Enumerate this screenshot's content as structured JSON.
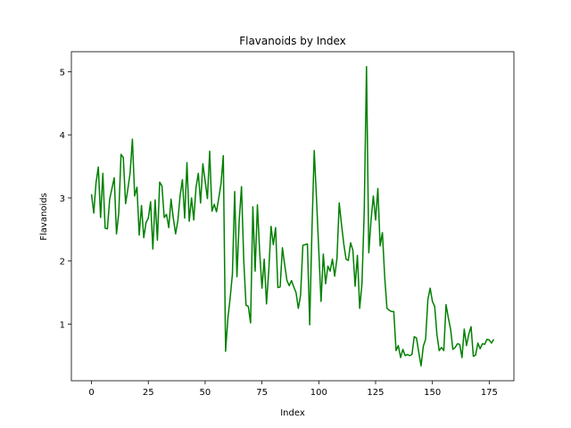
{
  "chart_data": {
    "type": "line",
    "title": "Flavanoids by Index",
    "x_label": "Index",
    "y_label": "Flavanoids",
    "x": [
      0,
      1,
      2,
      3,
      4,
      5,
      6,
      7,
      8,
      9,
      10,
      11,
      12,
      13,
      14,
      15,
      16,
      17,
      18,
      19,
      20,
      21,
      22,
      23,
      24,
      25,
      26,
      27,
      28,
      29,
      30,
      31,
      32,
      33,
      34,
      35,
      36,
      37,
      38,
      39,
      40,
      41,
      42,
      43,
      44,
      45,
      46,
      47,
      48,
      49,
      50,
      51,
      52,
      53,
      54,
      55,
      56,
      57,
      58,
      59,
      60,
      61,
      62,
      63,
      64,
      65,
      66,
      67,
      68,
      69,
      70,
      71,
      72,
      73,
      74,
      75,
      76,
      77,
      78,
      79,
      80,
      81,
      82,
      83,
      84,
      85,
      86,
      87,
      88,
      89,
      90,
      91,
      92,
      93,
      94,
      95,
      96,
      97,
      98,
      99,
      100,
      101,
      102,
      103,
      104,
      105,
      106,
      107,
      108,
      109,
      110,
      111,
      112,
      113,
      114,
      115,
      116,
      117,
      118,
      119,
      120,
      121,
      122,
      123,
      124,
      125,
      126,
      127,
      128,
      129,
      130,
      131,
      132,
      133,
      134,
      135,
      136,
      137,
      138,
      139,
      140,
      141,
      142,
      143,
      144,
      145,
      146,
      147,
      148,
      149,
      150,
      151,
      152,
      153,
      154,
      155,
      156,
      157,
      158,
      159,
      160,
      161,
      162,
      163,
      164,
      165,
      166,
      167,
      168,
      169,
      170,
      171,
      172,
      173,
      174,
      175,
      176,
      177
    ],
    "series": [
      {
        "name": "Flavanoids",
        "color": "#008000",
        "values": [
          3.06,
          2.76,
          3.24,
          3.49,
          2.69,
          3.39,
          2.52,
          2.51,
          2.98,
          3.15,
          3.32,
          2.43,
          2.76,
          3.69,
          3.64,
          2.91,
          3.14,
          3.4,
          3.93,
          3.03,
          3.17,
          2.41,
          2.88,
          2.37,
          2.61,
          2.68,
          2.94,
          2.19,
          2.97,
          2.33,
          3.25,
          3.19,
          2.69,
          2.74,
          2.53,
          2.98,
          2.68,
          2.43,
          2.64,
          3.04,
          3.29,
          2.68,
          3.56,
          2.63,
          3.0,
          2.65,
          3.17,
          3.39,
          2.92,
          3.54,
          3.27,
          2.99,
          3.74,
          2.79,
          2.9,
          2.78,
          3.0,
          3.23,
          3.67,
          0.57,
          1.09,
          1.41,
          1.79,
          3.1,
          1.75,
          2.65,
          3.18,
          2.0,
          1.3,
          1.28,
          1.02,
          2.86,
          1.84,
          2.89,
          2.14,
          1.57,
          2.03,
          1.32,
          1.85,
          2.55,
          2.26,
          2.53,
          1.58,
          1.59,
          2.21,
          1.94,
          1.69,
          1.61,
          1.69,
          1.59,
          1.5,
          1.25,
          1.46,
          2.25,
          2.26,
          2.27,
          0.99,
          2.5,
          3.75,
          2.99,
          2.17,
          1.36,
          2.11,
          1.64,
          1.92,
          1.84,
          2.03,
          1.76,
          2.04,
          2.92,
          2.58,
          2.27,
          2.03,
          2.01,
          2.29,
          2.17,
          1.6,
          2.09,
          1.25,
          1.64,
          2.79,
          5.08,
          2.13,
          2.65,
          3.03,
          2.65,
          3.15,
          2.24,
          2.45,
          1.75,
          1.25,
          1.22,
          1.2,
          1.2,
          0.58,
          0.66,
          0.47,
          0.6,
          0.5,
          0.52,
          0.5,
          0.52,
          0.8,
          0.78,
          0.55,
          0.34,
          0.65,
          0.76,
          1.39,
          1.57,
          1.36,
          1.28,
          0.83,
          0.58,
          0.63,
          0.58,
          1.31,
          1.1,
          0.92,
          0.6,
          0.63,
          0.69,
          0.68,
          0.47,
          0.92,
          0.66,
          0.84,
          0.96,
          0.49,
          0.51,
          0.7,
          0.61,
          0.69,
          0.68,
          0.76,
          0.75,
          0.7,
          0.76
        ]
      }
    ],
    "xlim": [
      -8.85,
      185.85
    ],
    "ylim": [
      0.103,
      5.317
    ],
    "xticks": [
      0,
      25,
      50,
      75,
      100,
      125,
      150,
      175
    ],
    "yticks": [
      1,
      2,
      3,
      4,
      5
    ]
  }
}
